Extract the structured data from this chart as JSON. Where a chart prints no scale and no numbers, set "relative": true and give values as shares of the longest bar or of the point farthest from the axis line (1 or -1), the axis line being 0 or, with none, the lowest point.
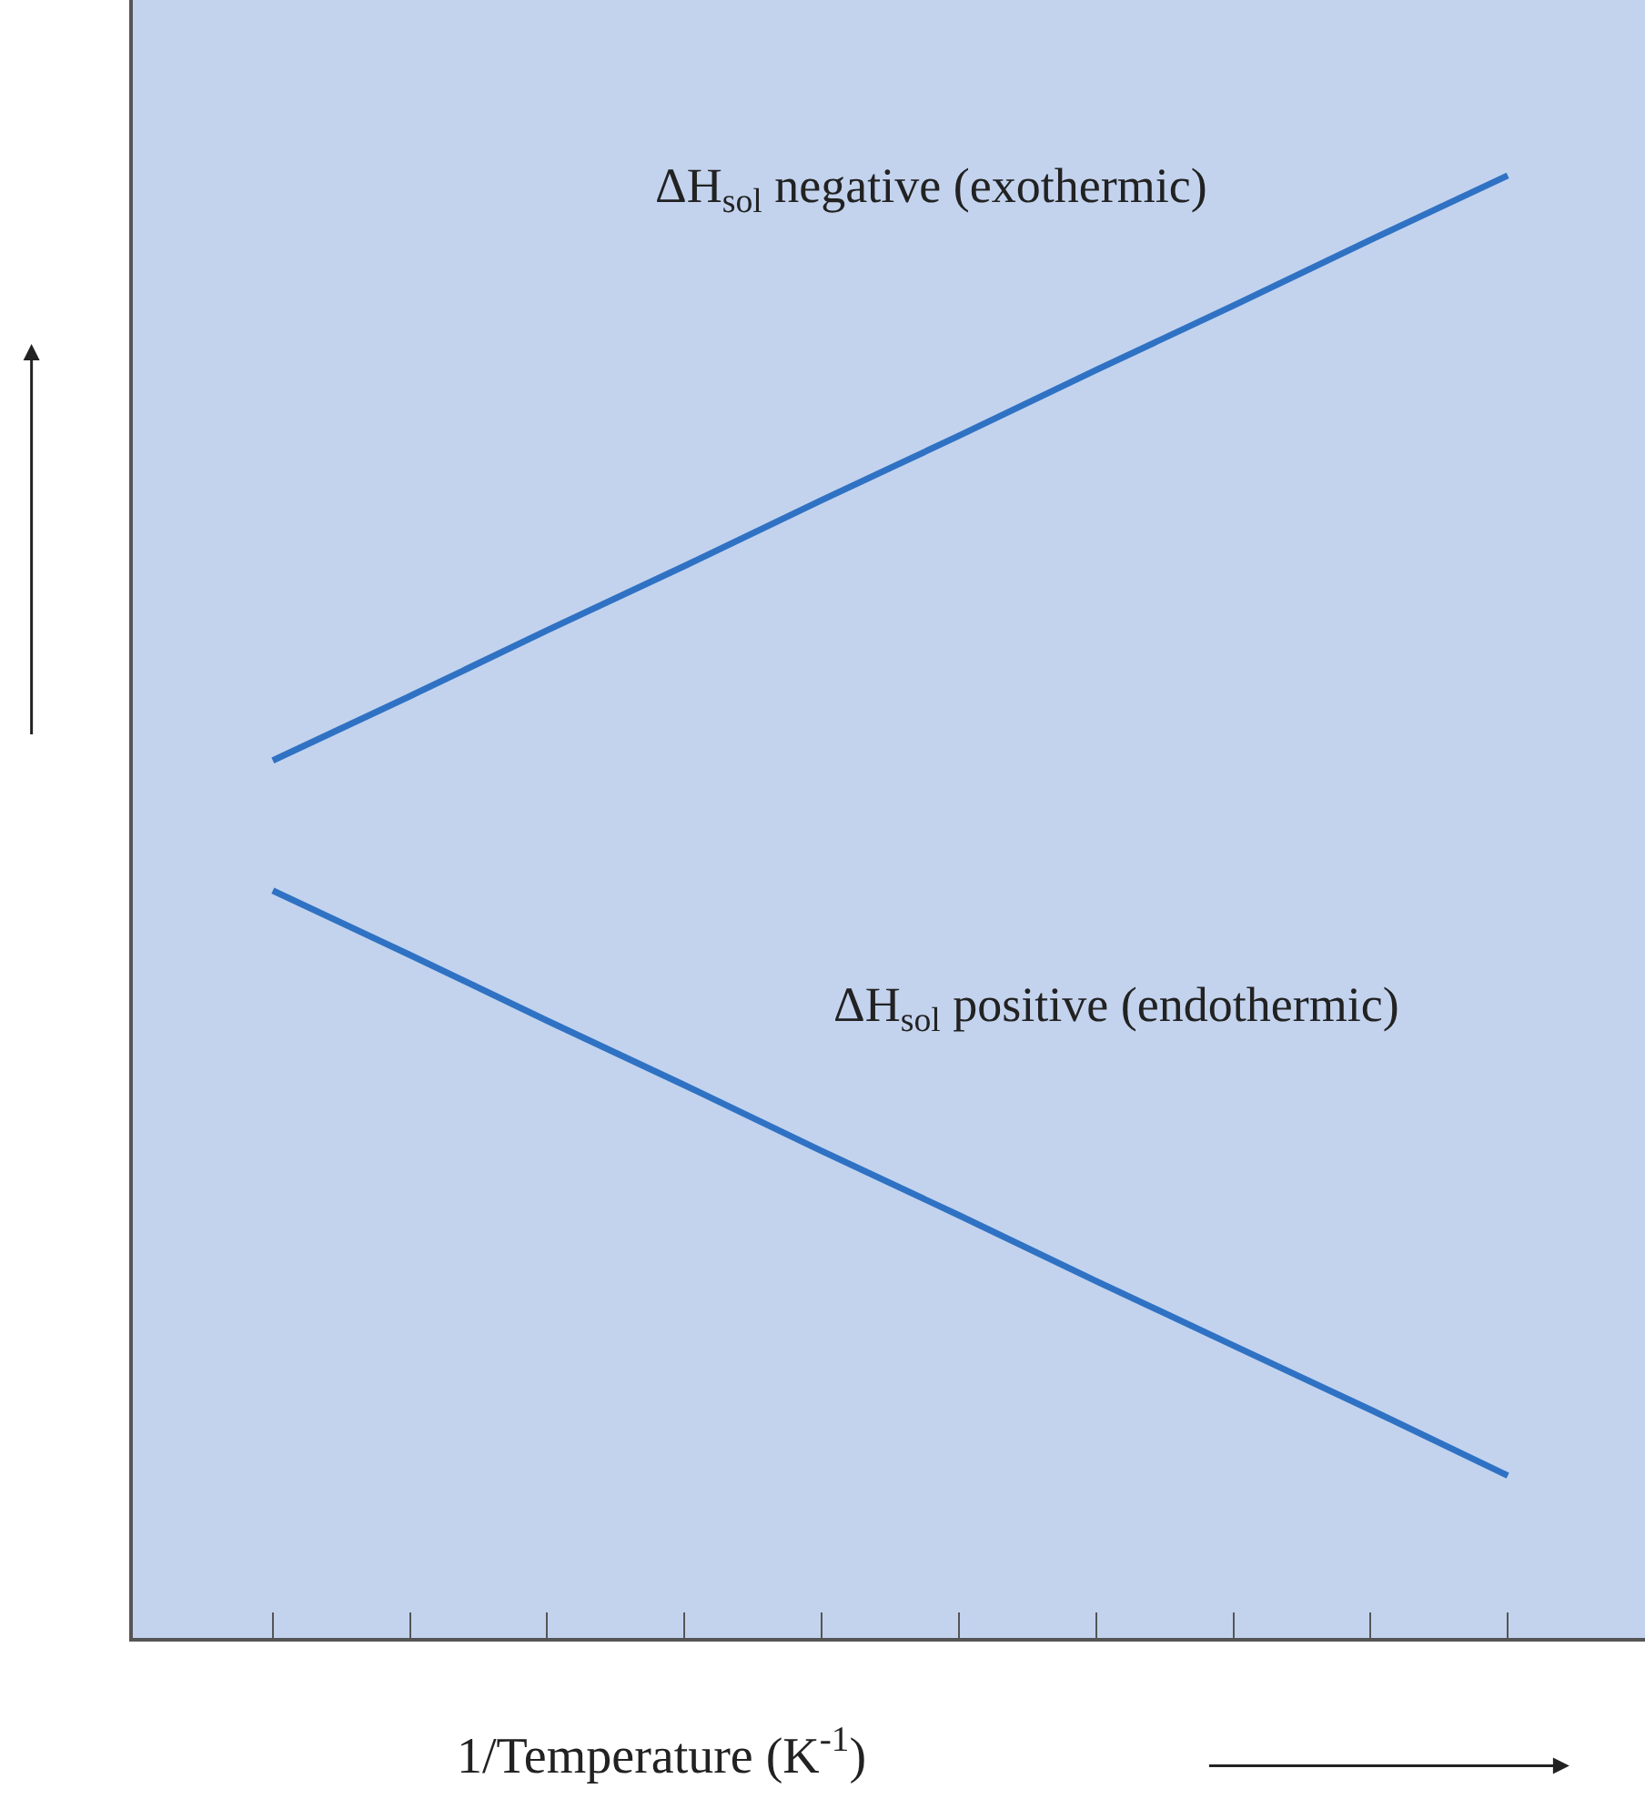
{
  "chart_data": {
    "type": "line",
    "relative": true,
    "xlabel": "1/Temperature (K$^{-1}$)",
    "categories": [
      null,
      null,
      null,
      null,
      null,
      null,
      null,
      null,
      null,
      null
    ],
    "series": [
      {
        "color": "#2f72c4",
        "values": [
          0.6,
          0.644,
          0.689,
          0.733,
          0.778,
          0.822,
          0.867,
          0.911,
          0.956,
          1.0
        ]
      },
      {
        "color": "#2f72c4",
        "values": [
          0.511,
          0.467,
          0.422,
          0.378,
          0.333,
          0.289,
          0.244,
          0.2,
          0.156,
          0.111
        ]
      }
    ],
    "annotations": [
      "ΔH$_{sol}$ negative (exothermic)",
      "ΔH$_{sol}$ positive (endothermic)"
    ],
    "marker": "none",
    "line_style": "solid"
  }
}
